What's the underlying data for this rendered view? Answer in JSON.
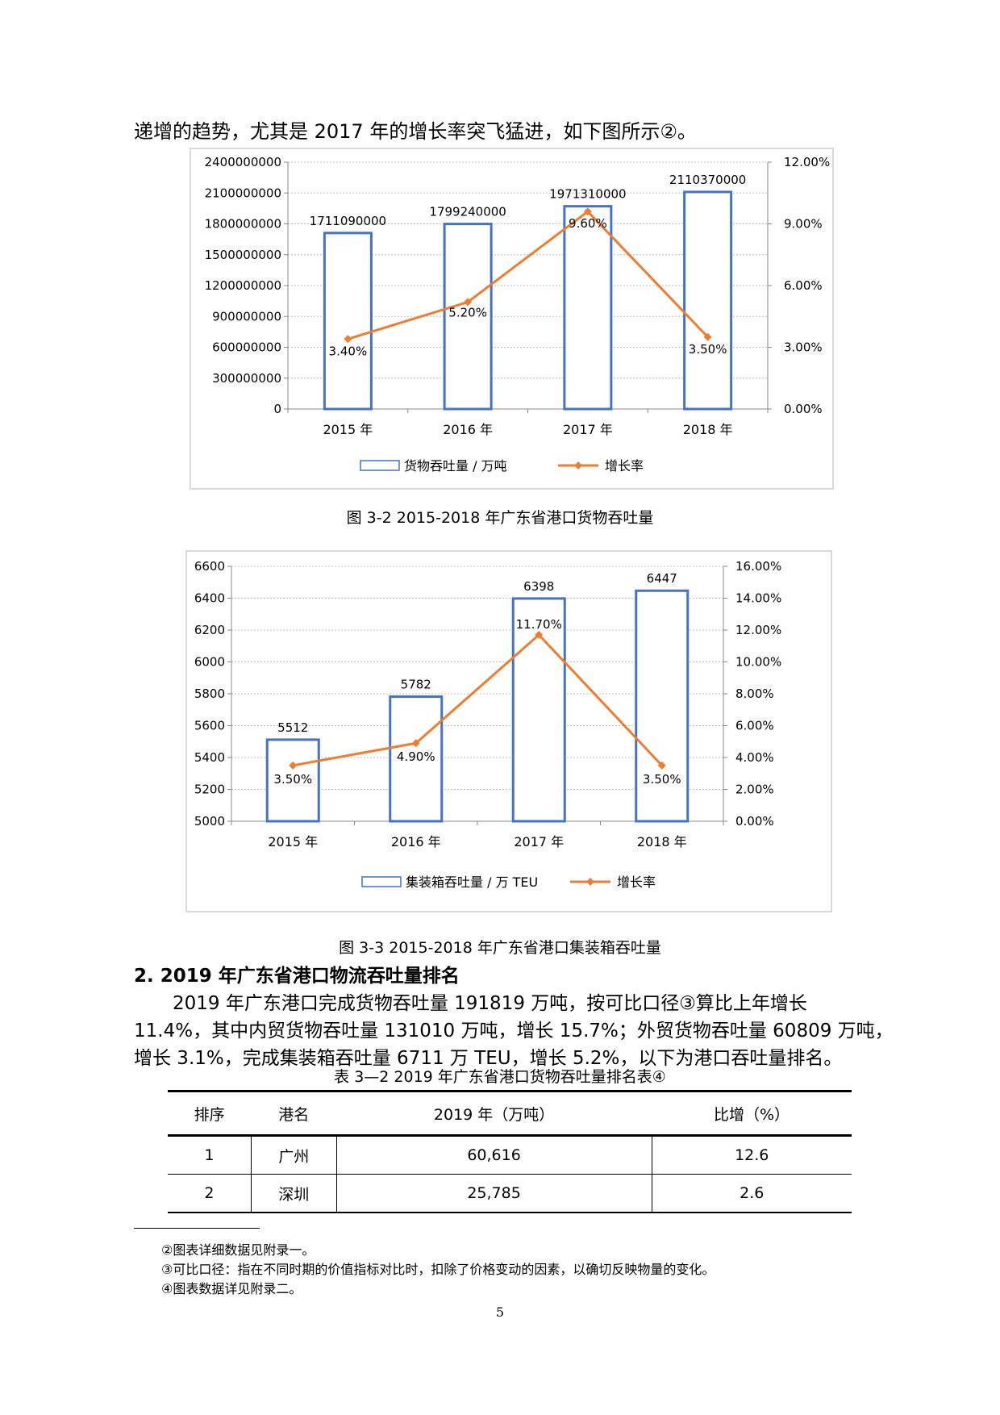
{
  "intro_text": "递增的趋势，尤其是 2017 年的增长率突飞猛进，如下图所示②。",
  "chart_data": [
    {
      "type": "bar",
      "categories": [
        "2015 年",
        "2016 年",
        "2017 年",
        "2018 年"
      ],
      "series": [
        {
          "name": "货物吞吐量 / 万吨",
          "kind": "bar",
          "values": [
            1711090000,
            1799240000,
            1971310000,
            2110370000
          ],
          "labels": [
            "1711090000",
            "1799240000",
            "1971310000",
            "2110370000"
          ]
        },
        {
          "name": "增长率",
          "kind": "line",
          "axis": "right",
          "values": [
            3.4,
            5.2,
            9.6,
            3.5
          ],
          "labels": [
            "3.40%",
            "5.20%",
            "9.60%",
            "3.50%"
          ]
        }
      ],
      "ylim": [
        0,
        2400000000
      ],
      "yticks": [
        "0",
        "300000000",
        "600000000",
        "900000000",
        "1200000000",
        "1500000000",
        "1800000000",
        "2100000000",
        "2400000000"
      ],
      "y2lim": [
        0,
        12
      ],
      "y2ticks": [
        "0.00%",
        "3.00%",
        "6.00%",
        "9.00%",
        "12.00%"
      ],
      "legend": [
        "货物吞吐量 / 万吨",
        "增长率"
      ],
      "legend_position": "bottom",
      "caption": "图  3-2  2015-2018 年广东省港口货物吞吐量"
    },
    {
      "type": "bar",
      "categories": [
        "2015 年",
        "2016 年",
        "2017 年",
        "2018 年"
      ],
      "series": [
        {
          "name": "集装箱吞吐量 / 万 TEU",
          "kind": "bar",
          "values": [
            5512,
            5782,
            6398,
            6447
          ],
          "labels": [
            "5512",
            "5782",
            "6398",
            "6447"
          ]
        },
        {
          "name": "增长率",
          "kind": "line",
          "axis": "right",
          "values": [
            3.5,
            4.9,
            11.7,
            3.5
          ],
          "labels": [
            "3.50%",
            "4.90%",
            "11.70%",
            "3.50%"
          ]
        }
      ],
      "ylim": [
        5000,
        6600
      ],
      "yticks": [
        "5000",
        "5200",
        "5400",
        "5600",
        "5800",
        "6000",
        "6200",
        "6400",
        "6600"
      ],
      "y2lim": [
        0,
        16
      ],
      "y2ticks": [
        "0.00%",
        "2.00%",
        "4.00%",
        "6.00%",
        "8.00%",
        "10.00%",
        "12.00%",
        "14.00%",
        "16.00%"
      ],
      "legend": [
        "集装箱吞吐量 / 万 TEU",
        "增长率"
      ],
      "legend_position": "bottom",
      "caption": "图  3-3  2015-2018 年广东省港口集装箱吞吐量"
    }
  ],
  "heading": "2.   2019 年广东省港口物流吞吐量排名",
  "paragraph_lines": [
    "2019 年广东港口完成货物吞吐量 191819 万吨，按可比口径③算比上年增长",
    "11.4%，其中内贸货物吞吐量 131010 万吨，增长 15.7%；外贸货物吞吐量 60809 万吨，",
    "增长 3.1%，完成集装箱吞吐量 6711 万 TEU，增长 5.2%，以下为港口吞吐量排名。"
  ],
  "table": {
    "title": "表  3—2  2019 年广东省港口货物吞吐量排名表④",
    "headers": [
      "排序",
      "港名",
      "2019 年（万吨）",
      "比增（%）"
    ],
    "rows": [
      [
        "1",
        "广州",
        "60,616",
        "12.6"
      ],
      [
        "2",
        "深圳",
        "25,785",
        "2.6"
      ]
    ]
  },
  "footnotes": [
    "②图表详细数据见附录一。",
    "③可比口径：指在不同时期的价值指标对比时，扣除了价格变动的因素，以确切反映物量的变化。",
    "④图表数据详见附录二。"
  ],
  "page_number": "5",
  "colors": {
    "bar_stroke": "#4472c4",
    "line": "#ed7d31",
    "grid": "#bfbfbf",
    "axis_text": "#000000"
  }
}
